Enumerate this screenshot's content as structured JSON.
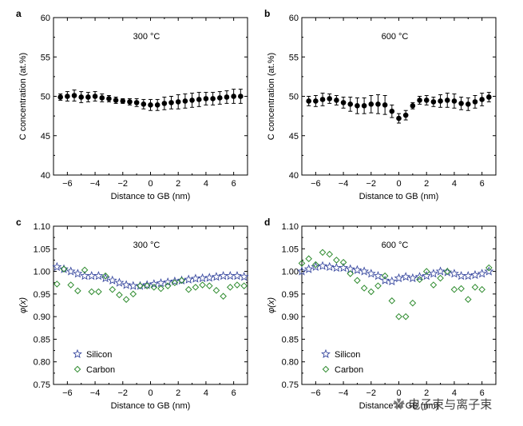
{
  "chart_data": [
    {
      "panel": "a",
      "type": "scatter",
      "annotation": "300 °C",
      "xlabel": "Distance to GB (nm)",
      "ylabel": "C concentration (at.%)",
      "xlim": [
        -7,
        7
      ],
      "ylim": [
        40,
        60
      ],
      "xticks": [
        "−6",
        "−4",
        "−2",
        "0",
        "2",
        "4",
        "6"
      ],
      "yticks": [
        "40",
        "45",
        "50",
        "55",
        "60"
      ],
      "series": [
        {
          "x": [
            -6.5,
            -6.0,
            -5.5,
            -5.0,
            -4.5,
            -4.0,
            -3.5,
            -3.0,
            -2.5,
            -2.0,
            -1.5,
            -1.0,
            -0.5,
            0.0,
            0.5,
            1.0,
            1.5,
            2.0,
            2.5,
            3.0,
            3.5,
            4.0,
            4.5,
            5.0,
            5.5,
            6.0,
            6.5
          ],
          "y": [
            49.9,
            50.0,
            50.1,
            49.9,
            49.9,
            50.0,
            49.8,
            49.7,
            49.5,
            49.4,
            49.3,
            49.2,
            49.0,
            48.9,
            48.9,
            49.1,
            49.2,
            49.3,
            49.4,
            49.5,
            49.6,
            49.7,
            49.7,
            49.8,
            49.9,
            50.0,
            50.0
          ],
          "err": [
            0.4,
            0.6,
            0.7,
            0.7,
            0.6,
            0.6,
            0.5,
            0.4,
            0.4,
            0.3,
            0.4,
            0.5,
            0.6,
            0.7,
            0.7,
            0.8,
            0.8,
            0.9,
            0.9,
            0.9,
            0.9,
            0.8,
            0.8,
            0.8,
            0.8,
            0.9,
            0.9
          ]
        }
      ]
    },
    {
      "panel": "b",
      "type": "scatter",
      "annotation": "600 °C",
      "xlabel": "Distance to GB (nm)",
      "ylabel": "C concentration (at.%)",
      "xlim": [
        -7,
        7
      ],
      "ylim": [
        40,
        60
      ],
      "xticks": [
        "−6",
        "−4",
        "−2",
        "0",
        "2",
        "4",
        "6"
      ],
      "yticks": [
        "40",
        "45",
        "50",
        "55",
        "60"
      ],
      "series": [
        {
          "x": [
            -6.5,
            -6.0,
            -5.5,
            -5.0,
            -4.5,
            -4.0,
            -3.5,
            -3.0,
            -2.5,
            -2.0,
            -1.5,
            -1.0,
            -0.5,
            0.0,
            0.5,
            1.0,
            1.5,
            2.0,
            2.5,
            3.0,
            3.5,
            4.0,
            4.5,
            5.0,
            5.5,
            6.0,
            6.5
          ],
          "y": [
            49.4,
            49.4,
            49.6,
            49.7,
            49.5,
            49.2,
            49.0,
            48.8,
            48.8,
            49.0,
            49.0,
            48.9,
            48.1,
            47.2,
            47.6,
            48.8,
            49.5,
            49.5,
            49.3,
            49.4,
            49.5,
            49.4,
            49.1,
            49.0,
            49.3,
            49.6,
            49.9
          ],
          "err": [
            0.6,
            0.7,
            0.8,
            0.6,
            0.6,
            0.7,
            0.9,
            1.0,
            1.0,
            1.1,
            1.2,
            1.2,
            0.8,
            0.6,
            0.6,
            0.4,
            0.5,
            0.6,
            0.6,
            0.8,
            0.9,
            0.9,
            0.8,
            0.8,
            0.8,
            0.8,
            0.6
          ]
        }
      ]
    },
    {
      "panel": "c",
      "type": "scatter",
      "annotation": "300 °C",
      "xlabel": "Distance to GB (nm)",
      "ylabel": "φ(x)",
      "xlim": [
        -7,
        7
      ],
      "ylim": [
        0.75,
        1.1
      ],
      "xticks": [
        "−6",
        "−4",
        "−2",
        "0",
        "2",
        "4",
        "6"
      ],
      "yticks": [
        "0.75",
        "0.80",
        "0.85",
        "0.90",
        "0.95",
        "1.00",
        "1.05",
        "1.10"
      ],
      "legend": "bottom-left",
      "series": [
        {
          "name": "Silicon",
          "marker": "star",
          "color": "#3a4aa0",
          "x": [
            -6.75,
            -6.25,
            -5.75,
            -5.25,
            -4.75,
            -4.25,
            -3.75,
            -3.25,
            -2.75,
            -2.25,
            -1.75,
            -1.25,
            -0.75,
            -0.25,
            0.25,
            0.75,
            1.25,
            1.75,
            2.25,
            2.75,
            3.25,
            3.75,
            4.25,
            4.75,
            5.25,
            5.75,
            6.25,
            6.75
          ],
          "y": [
            1.01,
            1.005,
            1.0,
            0.995,
            0.99,
            0.99,
            0.99,
            0.985,
            0.98,
            0.975,
            0.97,
            0.968,
            0.968,
            0.97,
            0.972,
            0.974,
            0.976,
            0.978,
            0.98,
            0.982,
            0.984,
            0.985,
            0.986,
            0.988,
            0.99,
            0.99,
            0.99,
            0.988
          ]
        },
        {
          "name": "Carbon",
          "marker": "diamond",
          "color": "#2e8b2e",
          "x": [
            -6.75,
            -6.25,
            -5.75,
            -5.25,
            -4.75,
            -4.25,
            -3.75,
            -3.25,
            -2.75,
            -2.25,
            -1.75,
            -1.25,
            -0.75,
            -0.25,
            0.25,
            0.75,
            1.25,
            1.75,
            2.25,
            2.75,
            3.25,
            3.75,
            4.25,
            4.75,
            5.25,
            5.75,
            6.25,
            6.75
          ],
          "y": [
            0.972,
            1.005,
            0.97,
            0.957,
            1.003,
            0.955,
            0.955,
            0.99,
            0.96,
            0.948,
            0.938,
            0.95,
            0.968,
            0.968,
            0.965,
            0.962,
            0.968,
            0.975,
            0.98,
            0.96,
            0.965,
            0.97,
            0.968,
            0.958,
            0.945,
            0.965,
            0.97,
            0.968
          ]
        }
      ]
    },
    {
      "panel": "d",
      "type": "scatter",
      "annotation": "600 °C",
      "xlabel": "Distance to GB (nm)",
      "ylabel": "φ(x)",
      "xlim": [
        -7,
        7
      ],
      "ylim": [
        0.75,
        1.1
      ],
      "xticks": [
        "−6",
        "−4",
        "−2",
        "0",
        "2",
        "4",
        "6"
      ],
      "yticks": [
        "0.75",
        "0.80",
        "0.85",
        "0.90",
        "0.95",
        "1.00",
        "1.05",
        "1.10"
      ],
      "legend": "bottom-left",
      "series": [
        {
          "name": "Silicon",
          "marker": "star",
          "color": "#3a4aa0",
          "x": [
            -7.0,
            -6.5,
            -6.0,
            -5.5,
            -5.0,
            -4.5,
            -4.0,
            -3.5,
            -3.0,
            -2.5,
            -2.0,
            -1.5,
            -1.0,
            -0.5,
            0.0,
            0.5,
            1.0,
            1.5,
            2.0,
            2.5,
            3.0,
            3.5,
            4.0,
            4.5,
            5.0,
            5.5,
            6.0,
            6.5
          ],
          "y": [
            1.0,
            1.005,
            1.01,
            1.012,
            1.01,
            1.008,
            1.008,
            1.005,
            1.003,
            1.0,
            0.995,
            0.99,
            0.98,
            0.978,
            0.985,
            0.988,
            0.985,
            0.988,
            0.99,
            0.995,
            1.0,
            0.998,
            0.995,
            0.99,
            0.99,
            0.992,
            0.995,
            1.0
          ]
        },
        {
          "name": "Carbon",
          "marker": "diamond",
          "color": "#2e8b2e",
          "x": [
            -7.0,
            -6.5,
            -6.0,
            -5.5,
            -5.0,
            -4.5,
            -4.0,
            -3.5,
            -3.0,
            -2.5,
            -2.0,
            -1.5,
            -1.0,
            -0.5,
            0.0,
            0.5,
            1.0,
            1.5,
            2.0,
            2.5,
            3.0,
            3.5,
            4.0,
            4.5,
            5.0,
            5.5,
            6.0,
            6.5
          ],
          "y": [
            1.018,
            1.028,
            1.015,
            1.042,
            1.038,
            1.025,
            1.02,
            0.995,
            0.98,
            0.963,
            0.955,
            0.968,
            0.99,
            0.935,
            0.9,
            0.9,
            0.93,
            0.982,
            1.0,
            0.97,
            0.985,
            1.0,
            0.96,
            0.962,
            0.938,
            0.965,
            0.96,
            1.008
          ]
        }
      ]
    }
  ],
  "watermark": "电子束与离子束"
}
